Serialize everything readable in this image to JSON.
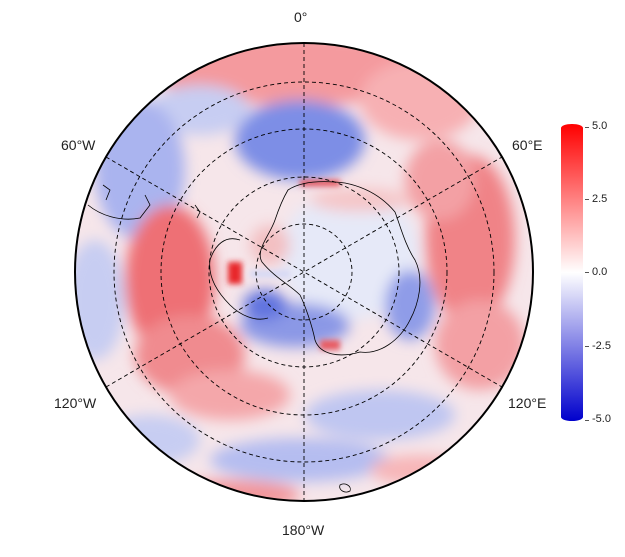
{
  "map": {
    "projection": "south-polar-stereographic",
    "colormap": {
      "min_color": "#0000cc",
      "mid_color": "#ffffff",
      "max_color": "#ff0000"
    }
  },
  "longitude_labels": {
    "top": "0°",
    "upper_left": "60°W",
    "upper_right": "60°E",
    "lower_left": "120°W",
    "lower_right": "120°E",
    "bottom": "180°W"
  },
  "colorbar": {
    "ticks": [
      "5.0",
      "2.5",
      "0.0",
      "-2.5",
      "-5.0"
    ],
    "range": [
      -5.0,
      5.0
    ]
  }
}
